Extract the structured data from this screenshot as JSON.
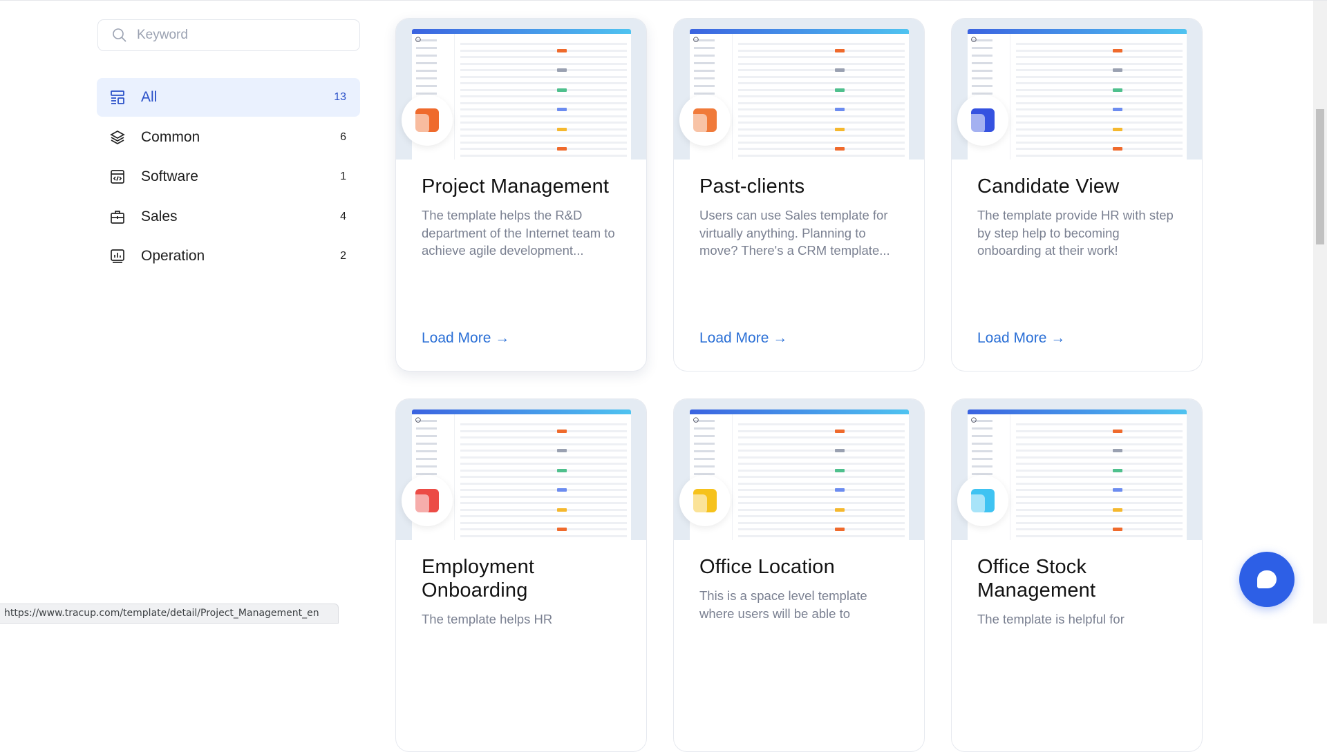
{
  "search": {
    "placeholder": "Keyword",
    "icon": "search-icon"
  },
  "categories": [
    {
      "label": "All",
      "count": "13",
      "icon": "layout-icon",
      "active": true
    },
    {
      "label": "Common",
      "count": "6",
      "icon": "layers-icon"
    },
    {
      "label": "Software",
      "count": "1",
      "icon": "code-window-icon"
    },
    {
      "label": "Sales",
      "count": "4",
      "icon": "briefcase-icon"
    },
    {
      "label": "Operation",
      "count": "2",
      "icon": "monitor-chart-icon"
    }
  ],
  "cards": [
    {
      "title": "Project Management",
      "desc": "The template helps the R&D department of the Internet team to achieve agile development...",
      "link": "Load More →",
      "color": "#ef6a2c",
      "brand": "tracup"
    },
    {
      "title": "Past-clients",
      "desc": "Users can use Sales template for virtually anything. Planning to move? There's a CRM template...",
      "link": "Load More →",
      "color": "#f07a3a",
      "brand": "tracup"
    },
    {
      "title": "Candidate View",
      "desc": "The template provide HR with step by step help to becoming onboarding at their work!",
      "link": "Load More →",
      "color": "#3552e0",
      "brand": "tracup"
    },
    {
      "title": "Employment Onboarding",
      "desc": "The template helps HR",
      "link": "",
      "color": "#ec4b45",
      "brand": "tracup"
    },
    {
      "title": "Office Location",
      "desc": "This is a space level template where users will be able to",
      "link": "",
      "color": "#f6c21c",
      "brand": "tracup"
    },
    {
      "title": "Office Stock Management",
      "desc": "The template is helpful for",
      "link": "",
      "color": "#3fc3f2",
      "brand": "tracup"
    }
  ],
  "status_url": "https://www.tracup.com/template/detail/Project_Management_en",
  "colors": {
    "accent": "#2a50c8",
    "link": "#2a6fd6",
    "chat": "#2d5fe6"
  }
}
